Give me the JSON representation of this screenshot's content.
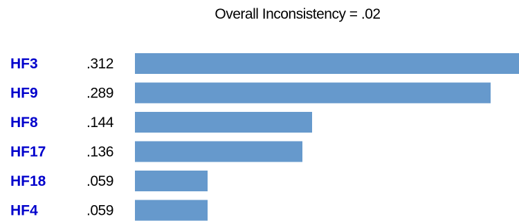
{
  "chart_data": {
    "type": "bar",
    "orientation": "horizontal",
    "title": "Overall Inconsistency = .02",
    "categories": [
      "HF3",
      "HF9",
      "HF8",
      "HF17",
      "HF18",
      "HF4"
    ],
    "value_labels": [
      ".312",
      ".289",
      ".144",
      ".136",
      ".059",
      ".059"
    ],
    "values": [
      0.312,
      0.289,
      0.144,
      0.136,
      0.059,
      0.059
    ],
    "xlim": [
      0,
      0.312
    ],
    "grid": false,
    "legend": "none"
  },
  "colors": {
    "bar": "#6699cc",
    "category_label": "#0000cc",
    "value_label": "#000000"
  }
}
